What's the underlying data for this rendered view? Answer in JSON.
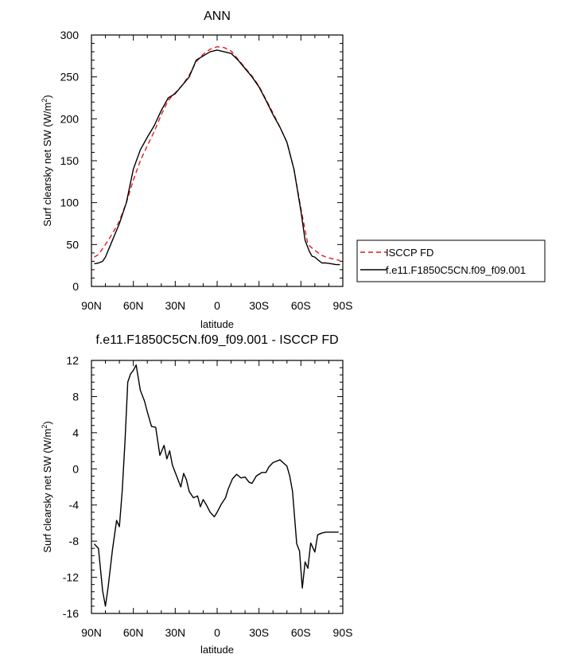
{
  "chart_data": [
    {
      "type": "line",
      "title": "ANN",
      "xlabel": "latitude",
      "ylabel": "Surf clearsky net SW (W/m",
      "ylabel_sup": "2",
      "ylabel_tail": ")",
      "xlim": [
        90,
        -90
      ],
      "ylim": [
        0,
        300
      ],
      "x_ticks": [
        90,
        60,
        30,
        0,
        -30,
        -60,
        -90
      ],
      "x_tick_labels": [
        "90N",
        "60N",
        "30N",
        "0",
        "30S",
        "60S",
        "90S"
      ],
      "y_ticks": [
        0,
        50,
        100,
        150,
        200,
        250,
        300
      ],
      "y_tick_labels": [
        "0",
        "50",
        "100",
        "150",
        "200",
        "250",
        "300"
      ],
      "legend": "right",
      "series": [
        {
          "name": "ISCCP FD",
          "color": "#e41a1c",
          "dash": true,
          "x": [
            88,
            85,
            80,
            75,
            70,
            65,
            60,
            55,
            50,
            45,
            40,
            35,
            30,
            25,
            20,
            15,
            10,
            5,
            0,
            -5,
            -10,
            -15,
            -20,
            -25,
            -30,
            -35,
            -40,
            -45,
            -50,
            -55,
            -60,
            -65,
            -70,
            -75,
            -80,
            -85,
            -88
          ],
          "y": [
            35,
            38,
            50,
            63,
            78,
            100,
            127,
            150,
            168,
            185,
            205,
            222,
            231,
            240,
            252,
            268,
            277,
            283,
            286,
            285,
            281,
            271,
            261,
            251,
            239,
            223,
            207,
            190,
            172,
            140,
            93,
            50,
            43,
            37,
            34,
            32,
            31
          ]
        },
        {
          "name": "f.e11.F1850C5CN.f09_f09.001",
          "color": "#000000",
          "dash": false,
          "x": [
            88,
            85,
            82,
            80,
            75,
            70,
            65,
            60,
            55,
            50,
            45,
            40,
            35,
            30,
            25,
            20,
            15,
            10,
            5,
            0,
            -5,
            -10,
            -15,
            -20,
            -25,
            -30,
            -35,
            -40,
            -45,
            -50,
            -55,
            -60,
            -63,
            -66,
            -68,
            -70,
            -72,
            -75,
            -78,
            -82,
            -85,
            -88
          ],
          "y": [
            27,
            28,
            30,
            35,
            55,
            75,
            100,
            140,
            163,
            178,
            192,
            210,
            225,
            230,
            240,
            250,
            270,
            275,
            280,
            282,
            280,
            278,
            270,
            260,
            250,
            238,
            222,
            205,
            190,
            172,
            140,
            90,
            55,
            42,
            36,
            35,
            32,
            28,
            28,
            27,
            26,
            26
          ]
        }
      ]
    },
    {
      "type": "line",
      "title": "f.e11.F1850C5CN.f09_f09.001 - ISCCP FD",
      "xlabel": "latitude",
      "ylabel": "Surf clearsky net SW (W/m",
      "ylabel_sup": "2",
      "ylabel_tail": ")",
      "xlim": [
        90,
        -90
      ],
      "ylim": [
        -16,
        12
      ],
      "x_ticks": [
        90,
        60,
        30,
        0,
        -30,
        -60,
        -90
      ],
      "x_tick_labels": [
        "90N",
        "60N",
        "30N",
        "0",
        "30S",
        "60S",
        "90S"
      ],
      "y_ticks": [
        -16,
        -12,
        -8,
        -4,
        0,
        4,
        8,
        12
      ],
      "y_tick_labels": [
        "-16",
        "-12",
        "-8",
        "-4",
        "0",
        "4",
        "8",
        "12"
      ],
      "series": [
        {
          "color": "#000000",
          "dash": false,
          "x": [
            88,
            85,
            82,
            80,
            78,
            75,
            72,
            70,
            68,
            66,
            64,
            62,
            60,
            58,
            55,
            52,
            50,
            47,
            44,
            41,
            38,
            36,
            34,
            32,
            29,
            26,
            24,
            22,
            20,
            17,
            14,
            12,
            10,
            8,
            5,
            2,
            0,
            -3,
            -6,
            -8,
            -11,
            -14,
            -17,
            -20,
            -23,
            -25,
            -28,
            -30,
            -32,
            -35,
            -37,
            -40,
            -45,
            -50,
            -52,
            -54,
            -57,
            -59,
            -61,
            -63,
            -65,
            -67,
            -70,
            -72,
            -75,
            -78,
            -80,
            -82,
            -84,
            -87
          ],
          "y": [
            -8.3,
            -8.8,
            -13.5,
            -15.2,
            -13,
            -9,
            -5.7,
            -6.4,
            -2.5,
            3,
            9.6,
            10.5,
            10.9,
            11.5,
            8.7,
            7.5,
            6.3,
            4.7,
            4.6,
            1.5,
            2.6,
            1.1,
            2,
            0.4,
            -0.8,
            -2,
            -0.5,
            -1.2,
            -2.5,
            -3.2,
            -3,
            -4.2,
            -3.4,
            -3.9,
            -4.8,
            -5.3,
            -4.8,
            -3.9,
            -3.2,
            -2.2,
            -1.1,
            -0.6,
            -1.0,
            -0.9,
            -1.5,
            -1.6,
            -0.8,
            -0.6,
            -0.4,
            -0.4,
            0.2,
            0.7,
            1.0,
            0.3,
            -0.8,
            -2.5,
            -8.3,
            -9.1,
            -13.2,
            -10.3,
            -11,
            -8.2,
            -9.2,
            -7.3,
            -7.1,
            -7.0,
            -7.0,
            -7.0,
            -7.0,
            -7.0
          ]
        }
      ]
    }
  ]
}
